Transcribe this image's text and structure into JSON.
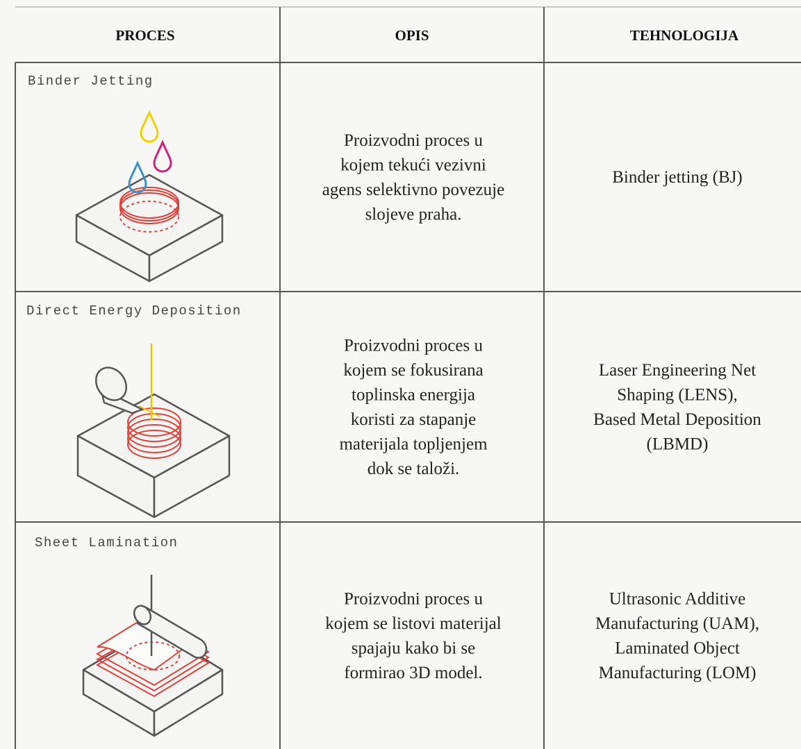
{
  "table": {
    "header": [
      "PROCES",
      "OPIS",
      "TEHNOLOGIJA"
    ],
    "rows": [
      {
        "process": "Binder Jetting",
        "description": [
          "Proizvodni proces u",
          "kojem tekući vezivni",
          "agens selektivno povezuje",
          "slojeve praha."
        ],
        "technology": [
          "Binder jetting (BJ)"
        ]
      },
      {
        "process": "Direct Energy Deposition",
        "description": [
          "Proizvodni proces u",
          "kojem se fokusirana",
          "toplinska energija",
          "koristi za stapanje",
          "materijala topljenjem",
          "dok se taloži."
        ],
        "technology": [
          "Laser Engineering Net",
          "Shaping (LENS),",
          "Based Metal Deposition",
          "(LBMD)"
        ]
      },
      {
        "process": "Sheet Lamination",
        "description": [
          "Proizvodni proces u",
          "kojem se listovi materijal",
          "spajaju kako bi se",
          "formirao 3D model."
        ],
        "technology": [
          "Ultrasonic Additive",
          "Manufacturing (UAM),",
          "Laminated Object",
          "Manufacturing (LOM)"
        ]
      }
    ]
  }
}
